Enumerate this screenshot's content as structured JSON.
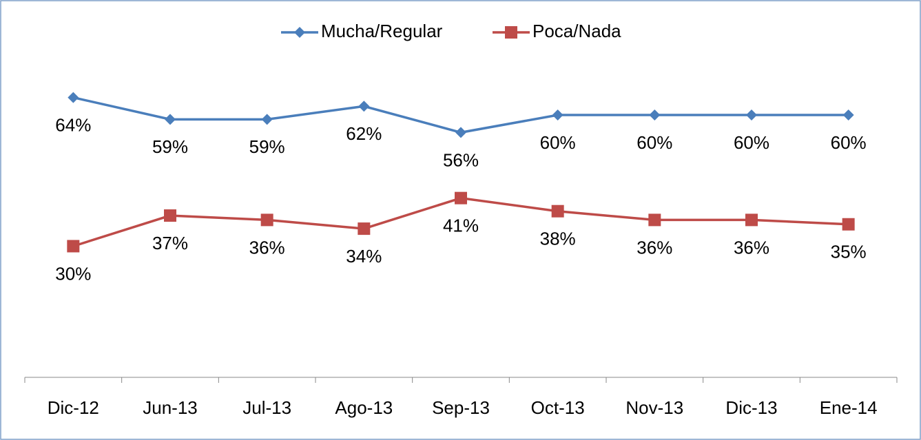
{
  "chart_data": {
    "type": "line",
    "categories": [
      "Dic-12",
      "Jun-13",
      "Jul-13",
      "Ago-13",
      "Sep-13",
      "Oct-13",
      "Nov-13",
      "Dic-13",
      "Ene-14"
    ],
    "series": [
      {
        "name": "Mucha/Regular",
        "color": "#4a7ebb",
        "marker": "diamond",
        "values": [
          64,
          59,
          59,
          62,
          56,
          60,
          60,
          60,
          60
        ],
        "value_labels": [
          "64%",
          "59%",
          "59%",
          "62%",
          "56%",
          "60%",
          "60%",
          "60%",
          "60%"
        ]
      },
      {
        "name": "Poca/Nada",
        "color": "#be4b48",
        "marker": "square",
        "values": [
          30,
          37,
          36,
          34,
          41,
          38,
          36,
          36,
          35
        ],
        "value_labels": [
          "30%",
          "37%",
          "36%",
          "34%",
          "41%",
          "38%",
          "36%",
          "36%",
          "35%"
        ]
      }
    ],
    "ylim": [
      0,
      80
    ],
    "legend": "top"
  }
}
